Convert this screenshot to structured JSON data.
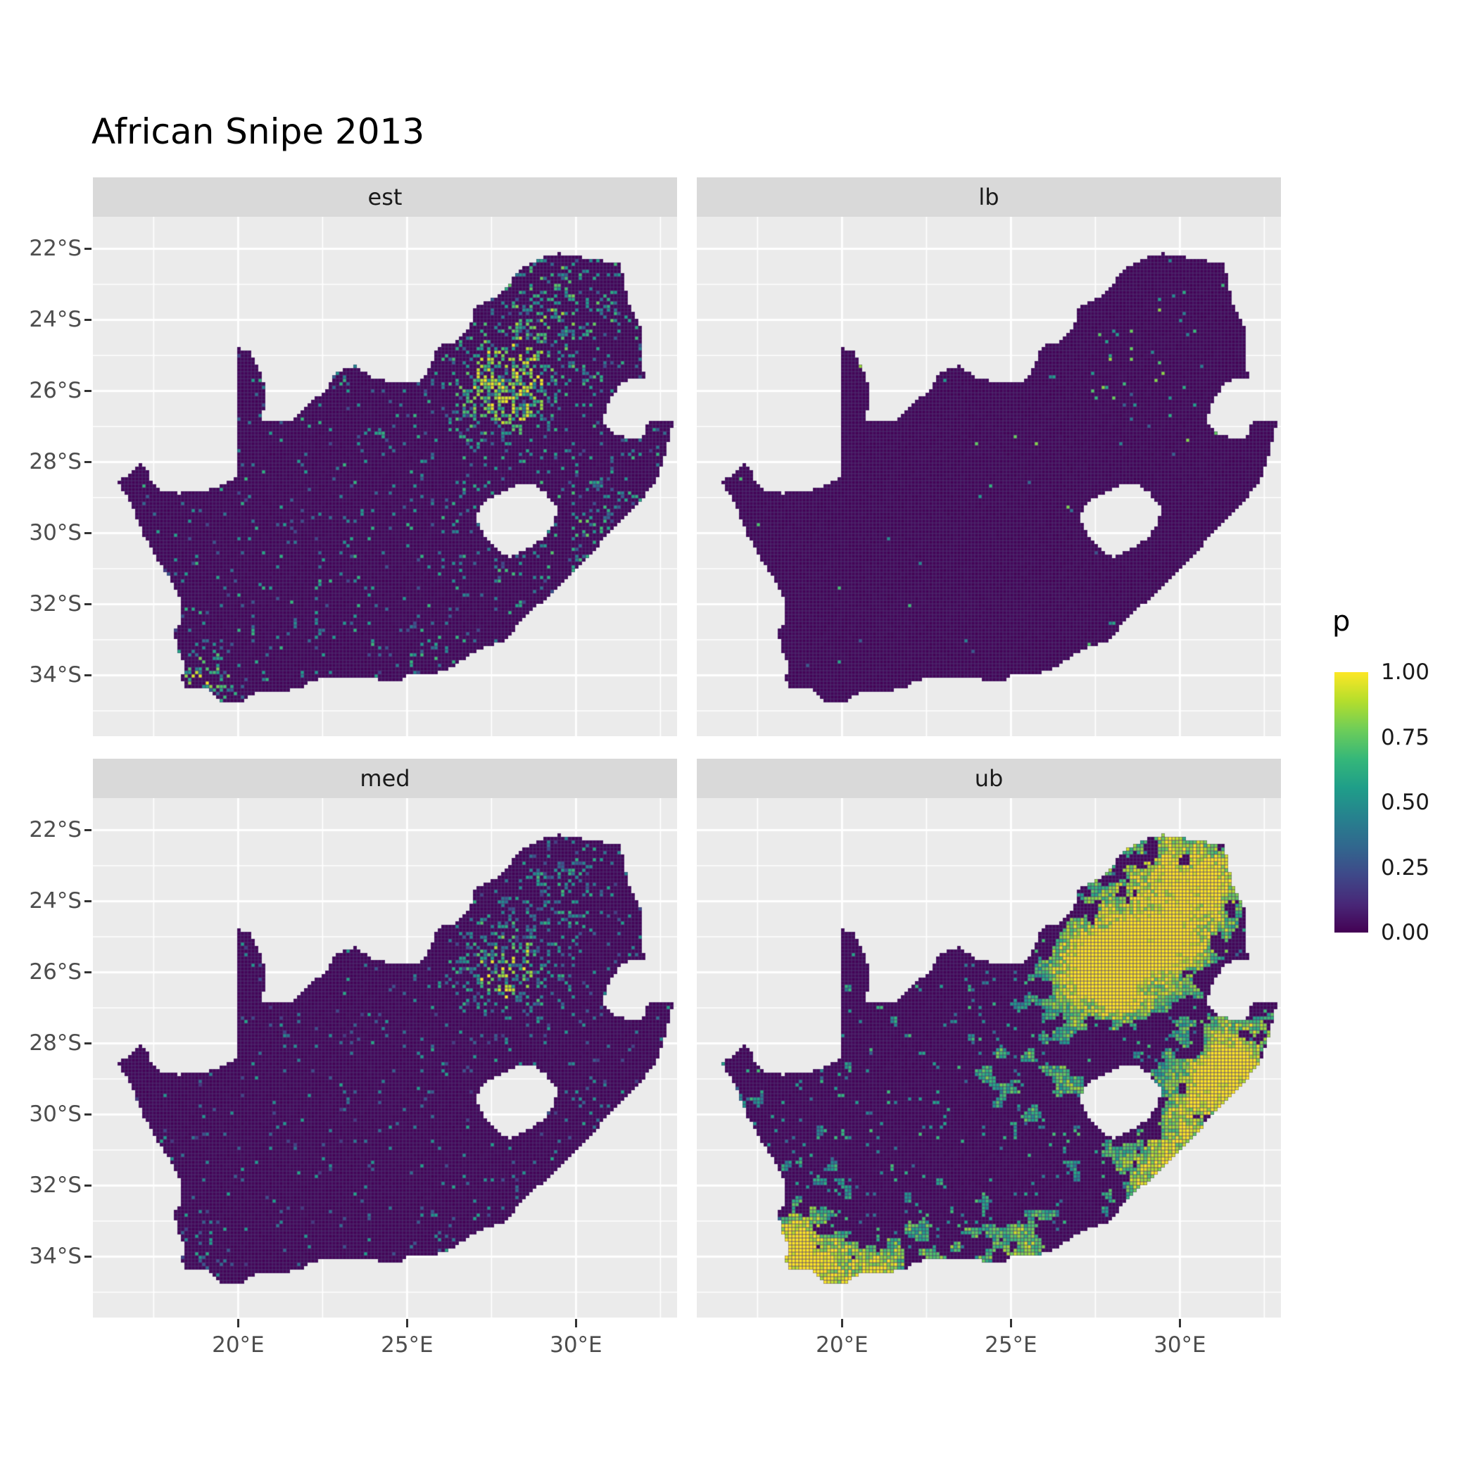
{
  "title": "African Snipe 2013",
  "facets": [
    {
      "id": "est",
      "label": "est"
    },
    {
      "id": "lb",
      "label": "lb"
    },
    {
      "id": "med",
      "label": "med"
    },
    {
      "id": "ub",
      "label": "ub"
    }
  ],
  "axes": {
    "y_labels": [
      "22°S",
      "24°S",
      "26°S",
      "28°S",
      "30°S",
      "32°S",
      "34°S"
    ],
    "x_labels": [
      "20°E",
      "25°E",
      "30°E"
    ]
  },
  "legend": {
    "title": "p",
    "tick_labels": [
      "1.00",
      "0.75",
      "0.50",
      "0.25",
      "0.00"
    ],
    "tick_values": [
      1,
      0.75,
      0.5,
      0.25,
      0
    ]
  },
  "colors": {
    "background": "#ffffff",
    "panel_bg": "#ebebeb",
    "strip_bg": "#d9d9d9",
    "grid": "#ffffff",
    "axis_text": "#4d4d4d",
    "tick_mark": "#333333",
    "title_text": "#000000",
    "strip_text": "#1a1a1a",
    "cell_lattice": "#4f3b76"
  },
  "chart_data": {
    "type": "heatmap",
    "title": "African Snipe 2013",
    "facets": [
      "est",
      "lb",
      "med",
      "ub"
    ],
    "legend_title": "p",
    "value_range": [
      0,
      1
    ],
    "legend_breaks": [
      0,
      0.25,
      0.5,
      0.75,
      1
    ],
    "x_axis": {
      "tick_labels": [
        "20°E",
        "25°E",
        "30°E"
      ],
      "tick_values": [
        20,
        25,
        30
      ],
      "range_lon": [
        15.7,
        33.0
      ]
    },
    "y_axis": {
      "tick_labels": [
        "22°S",
        "24°S",
        "26°S",
        "28°S",
        "30°S",
        "32°S",
        "34°S"
      ],
      "tick_values": [
        -22,
        -24,
        -26,
        -28,
        -30,
        -32,
        -34
      ],
      "range_lat": [
        -35.7,
        -21.1
      ]
    },
    "grid": true,
    "legend_position": "right",
    "colormap": {
      "name": "viridis",
      "stops": [
        "#440154",
        "#482878",
        "#3e4989",
        "#31688e",
        "#26828e",
        "#1f9e89",
        "#35b779",
        "#6dcd59",
        "#b4de2c",
        "#fde725"
      ]
    },
    "region": "South Africa occurrence-probability raster; facets show estimate (est), lower bound (lb), median (med) and upper bound (ub); p near 0 over most cells, elevated around Gauteng (~28E, 26S), the northeast, the KwaZulu-Natal coast and the southwest Cape; ub shows large high-p (yellow) clusters, lb nearly all zero",
    "cell_size_px": 5,
    "south_africa_outline": [
      [
        16.45,
        -28.58
      ],
      [
        16.78,
        -28.32
      ],
      [
        17.05,
        -28.03
      ],
      [
        17.32,
        -28.22
      ],
      [
        17.42,
        -28.56
      ],
      [
        17.65,
        -28.77
      ],
      [
        18.2,
        -28.88
      ],
      [
        18.9,
        -28.84
      ],
      [
        19.4,
        -28.72
      ],
      [
        19.98,
        -28.43
      ],
      [
        19.98,
        -24.77
      ],
      [
        20.35,
        -24.9
      ],
      [
        20.62,
        -25.35
      ],
      [
        20.85,
        -26.1
      ],
      [
        20.68,
        -26.82
      ],
      [
        21.55,
        -26.85
      ],
      [
        22.05,
        -26.38
      ],
      [
        22.6,
        -26.0
      ],
      [
        22.88,
        -25.48
      ],
      [
        23.45,
        -25.3
      ],
      [
        24.0,
        -25.65
      ],
      [
        24.75,
        -25.78
      ],
      [
        25.4,
        -25.72
      ],
      [
        25.62,
        -25.45
      ],
      [
        25.9,
        -24.75
      ],
      [
        26.42,
        -24.62
      ],
      [
        26.85,
        -24.26
      ],
      [
        26.97,
        -23.68
      ],
      [
        27.6,
        -23.38
      ],
      [
        28.05,
        -22.95
      ],
      [
        28.35,
        -22.58
      ],
      [
        29.05,
        -22.22
      ],
      [
        29.45,
        -22.13
      ],
      [
        29.95,
        -22.2
      ],
      [
        30.55,
        -22.3
      ],
      [
        31.3,
        -22.41
      ],
      [
        31.56,
        -23.5
      ],
      [
        31.97,
        -24.3
      ],
      [
        31.97,
        -25.1
      ],
      [
        32.02,
        -25.62
      ],
      [
        31.4,
        -25.73
      ],
      [
        30.97,
        -26.3
      ],
      [
        30.8,
        -26.85
      ],
      [
        31.08,
        -27.2
      ],
      [
        31.5,
        -27.32
      ],
      [
        31.97,
        -27.31
      ],
      [
        32.13,
        -26.85
      ],
      [
        32.89,
        -26.86
      ],
      [
        32.58,
        -27.95
      ],
      [
        32.38,
        -28.5
      ],
      [
        31.78,
        -29.25
      ],
      [
        31.06,
        -29.88
      ],
      [
        30.4,
        -30.65
      ],
      [
        29.9,
        -31.1
      ],
      [
        29.22,
        -31.75
      ],
      [
        28.55,
        -32.3
      ],
      [
        27.9,
        -33.03
      ],
      [
        27.05,
        -33.3
      ],
      [
        26.4,
        -33.75
      ],
      [
        25.65,
        -33.99
      ],
      [
        25.0,
        -34.0
      ],
      [
        24.8,
        -34.2
      ],
      [
        24.0,
        -34.1
      ],
      [
        23.35,
        -34.1
      ],
      [
        22.55,
        -34.05
      ],
      [
        22.12,
        -34.2
      ],
      [
        21.9,
        -34.4
      ],
      [
        21.2,
        -34.43
      ],
      [
        20.5,
        -34.48
      ],
      [
        20.0,
        -34.82
      ],
      [
        19.58,
        -34.77
      ],
      [
        19.33,
        -34.6
      ],
      [
        19.1,
        -34.38
      ],
      [
        18.82,
        -34.37
      ],
      [
        18.47,
        -34.35
      ],
      [
        18.32,
        -34.05
      ],
      [
        18.44,
        -33.72
      ],
      [
        18.25,
        -33.4
      ],
      [
        18.1,
        -32.75
      ],
      [
        18.32,
        -32.58
      ],
      [
        18.35,
        -32.0
      ],
      [
        18.18,
        -31.6
      ],
      [
        17.88,
        -31.15
      ],
      [
        17.58,
        -30.7
      ],
      [
        17.25,
        -30.15
      ],
      [
        17.02,
        -29.65
      ],
      [
        16.82,
        -29.15
      ]
    ],
    "lesotho_hole": [
      [
        27.0,
        -29.58
      ],
      [
        27.3,
        -29.08
      ],
      [
        27.78,
        -28.88
      ],
      [
        28.2,
        -28.68
      ],
      [
        28.72,
        -28.6
      ],
      [
        29.15,
        -28.92
      ],
      [
        29.44,
        -29.3
      ],
      [
        29.33,
        -29.78
      ],
      [
        29.08,
        -30.1
      ],
      [
        28.58,
        -30.42
      ],
      [
        28.05,
        -30.66
      ],
      [
        27.68,
        -30.5
      ],
      [
        27.32,
        -30.12
      ]
    ],
    "facet_patterns": {
      "est": {
        "seed": 1101,
        "type": "speckle",
        "base_p": 0.05,
        "v0": 0.18,
        "v1": 0.5,
        "v2": 0.55,
        "hotspots": [
          [
            27.9,
            -26.0,
            1.3,
            0.55
          ],
          [
            28.7,
            -24.5,
            2.0,
            0.16
          ],
          [
            29.9,
            -23.4,
            1.5,
            0.18
          ],
          [
            30.8,
            -29.7,
            1.2,
            0.2
          ],
          [
            18.8,
            -33.9,
            0.9,
            0.28
          ],
          [
            19.3,
            -34.5,
            0.8,
            0.15
          ],
          [
            25.7,
            -33.8,
            0.8,
            0.12
          ],
          [
            28.4,
            -30.7,
            1.0,
            0.1
          ],
          [
            26.7,
            -29.1,
            0.8,
            0.08
          ]
        ]
      },
      "lb": {
        "seed": 1202,
        "type": "speckle",
        "base_p": 0.0035,
        "v0": 0.25,
        "v1": 0.6,
        "v2": 0.4,
        "hotspots": [
          [
            28.2,
            -25.4,
            1.6,
            0.045
          ],
          [
            29.9,
            -23.8,
            1.2,
            0.025
          ],
          [
            30.9,
            -27.2,
            0.8,
            0.012
          ]
        ]
      },
      "med": {
        "seed": 1303,
        "type": "speckle",
        "base_p": 0.03,
        "v0": 0.15,
        "v1": 0.45,
        "v2": 0.5,
        "hotspots": [
          [
            27.9,
            -26.0,
            1.3,
            0.4
          ],
          [
            28.7,
            -24.5,
            1.8,
            0.12
          ],
          [
            29.9,
            -23.4,
            1.3,
            0.1
          ],
          [
            18.8,
            -33.9,
            0.8,
            0.12
          ],
          [
            30.8,
            -29.7,
            1.0,
            0.1
          ],
          [
            25.7,
            -33.8,
            0.7,
            0.07
          ]
        ]
      },
      "ub": {
        "seed": 1404,
        "type": "clump",
        "threshold": 0.8,
        "speck_p": 0.03,
        "noise_steps": [
          0.45,
          0.18
        ],
        "noise_weights": [
          0.68,
          0.32
        ],
        "hotspots": [
          [
            27.85,
            -25.9,
            1.5,
            1.1
          ],
          [
            29.3,
            -23.3,
            1.7,
            0.5
          ],
          [
            31.0,
            -23.5,
            1.3,
            0.45
          ],
          [
            30.0,
            -25.2,
            1.3,
            0.5
          ],
          [
            30.9,
            -29.4,
            1.4,
            0.6
          ],
          [
            29.7,
            -31.1,
            1.0,
            0.5
          ],
          [
            31.9,
            -28.2,
            1.2,
            0.55
          ],
          [
            28.6,
            -31.8,
            0.9,
            0.35
          ],
          [
            19.0,
            -34.2,
            1.1,
            0.6
          ],
          [
            18.5,
            -33.3,
            0.8,
            0.45
          ],
          [
            20.8,
            -34.3,
            1.2,
            0.5
          ],
          [
            23.2,
            -33.9,
            1.2,
            0.35
          ],
          [
            25.5,
            -33.7,
            1.0,
            0.4
          ],
          [
            26.5,
            -29.5,
            1.5,
            0.2
          ],
          [
            24.5,
            -28.3,
            1.5,
            0.15
          ]
        ]
      }
    }
  }
}
